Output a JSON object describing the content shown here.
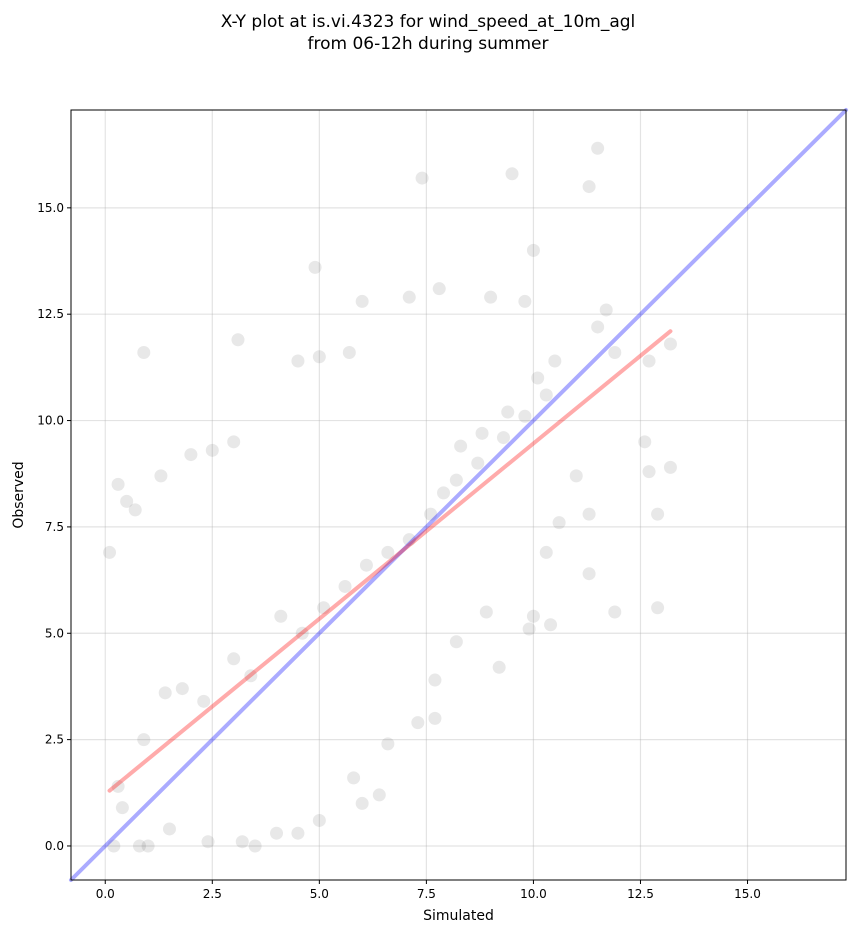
{
  "chart_data": {
    "type": "scatter",
    "title": [
      "X-Y plot at is.vi.4323 for wind_speed_at_10m_agl",
      "from 06-12h during summer"
    ],
    "xlabel": "Simulated",
    "ylabel": "Observed",
    "xlim": [
      -0.8,
      17.3
    ],
    "ylim": [
      -0.8,
      17.3
    ],
    "xticks": [
      0.0,
      2.5,
      5.0,
      7.5,
      10.0,
      12.5,
      15.0
    ],
    "yticks": [
      0.0,
      2.5,
      5.0,
      7.5,
      10.0,
      12.5,
      15.0
    ],
    "xtick_labels": [
      "0.0",
      "2.5",
      "5.0",
      "7.5",
      "10.0",
      "12.5",
      "15.0"
    ],
    "ytick_labels": [
      "0.0",
      "2.5",
      "5.0",
      "7.5",
      "10.0",
      "12.5",
      "15.0"
    ],
    "grid": true,
    "marker_color": "#444444",
    "marker_alpha": 0.12,
    "reference_line": {
      "type": "identity",
      "color": "#0000ff",
      "alpha": 0.33,
      "x": [
        -0.8,
        17.3
      ],
      "y": [
        -0.8,
        17.3
      ]
    },
    "fit_line": {
      "type": "linear_regression",
      "color": "#ff0000",
      "alpha": 0.33,
      "x": [
        0.1,
        13.2
      ],
      "y": [
        1.3,
        12.1
      ]
    },
    "series": [
      {
        "points": [
          [
            0.1,
            6.9
          ],
          [
            0.3,
            8.5
          ],
          [
            0.5,
            8.1
          ],
          [
            0.7,
            7.9
          ],
          [
            0.9,
            11.6
          ],
          [
            1.3,
            8.7
          ],
          [
            2.0,
            9.2
          ],
          [
            2.5,
            9.3
          ],
          [
            3.1,
            11.9
          ],
          [
            3.0,
            9.5
          ],
          [
            4.5,
            11.4
          ],
          [
            4.9,
            13.6
          ],
          [
            5.0,
            11.5
          ],
          [
            6.0,
            12.8
          ],
          [
            5.7,
            11.6
          ],
          [
            7.1,
            12.9
          ],
          [
            7.8,
            13.1
          ],
          [
            7.4,
            15.7
          ],
          [
            9.5,
            15.8
          ],
          [
            9.8,
            12.8
          ],
          [
            9.0,
            12.9
          ],
          [
            11.3,
            15.5
          ],
          [
            11.5,
            16.4
          ],
          [
            10.0,
            14.0
          ],
          [
            11.5,
            12.2
          ],
          [
            11.7,
            12.6
          ],
          [
            11.9,
            11.6
          ],
          [
            12.7,
            11.4
          ],
          [
            13.2,
            11.8
          ],
          [
            13.2,
            8.9
          ],
          [
            12.6,
            9.5
          ],
          [
            12.7,
            8.8
          ],
          [
            12.9,
            7.8
          ],
          [
            12.9,
            5.6
          ],
          [
            11.9,
            5.5
          ],
          [
            11.3,
            6.4
          ],
          [
            10.4,
            5.2
          ],
          [
            9.9,
            5.1
          ],
          [
            10.0,
            5.4
          ],
          [
            9.2,
            4.2
          ],
          [
            7.7,
            3.0
          ],
          [
            7.3,
            2.9
          ],
          [
            6.4,
            1.2
          ],
          [
            6.0,
            1.0
          ],
          [
            4.5,
            0.3
          ],
          [
            3.5,
            0.0
          ],
          [
            1.0,
            0.0
          ],
          [
            0.8,
            0.0
          ],
          [
            0.2,
            0.0
          ],
          [
            11.0,
            8.7
          ],
          [
            11.3,
            7.8
          ],
          [
            10.6,
            7.6
          ],
          [
            10.3,
            6.9
          ],
          [
            8.9,
            5.5
          ],
          [
            8.2,
            4.8
          ],
          [
            7.7,
            3.9
          ],
          [
            6.6,
            2.4
          ],
          [
            5.8,
            1.6
          ],
          [
            5.0,
            0.6
          ],
          [
            4.0,
            0.3
          ],
          [
            3.2,
            0.1
          ],
          [
            2.4,
            0.1
          ],
          [
            1.5,
            0.4
          ],
          [
            0.4,
            0.9
          ],
          [
            0.3,
            1.4
          ],
          [
            0.9,
            2.5
          ],
          [
            1.4,
            3.6
          ],
          [
            1.8,
            3.7
          ],
          [
            2.3,
            3.4
          ],
          [
            3.0,
            4.4
          ],
          [
            3.4,
            4.0
          ],
          [
            4.1,
            5.4
          ],
          [
            4.6,
            5.0
          ],
          [
            5.1,
            5.6
          ],
          [
            5.6,
            6.1
          ],
          [
            6.1,
            6.6
          ],
          [
            6.6,
            6.9
          ],
          [
            7.1,
            7.2
          ],
          [
            7.6,
            7.8
          ],
          [
            8.2,
            8.6
          ],
          [
            8.7,
            9.0
          ],
          [
            9.3,
            9.6
          ],
          [
            9.8,
            10.1
          ],
          [
            10.3,
            10.6
          ],
          [
            10.5,
            11.4
          ],
          [
            10.1,
            11.0
          ],
          [
            9.4,
            10.2
          ],
          [
            8.8,
            9.7
          ],
          [
            8.3,
            9.4
          ],
          [
            7.9,
            8.3
          ]
        ]
      }
    ]
  }
}
